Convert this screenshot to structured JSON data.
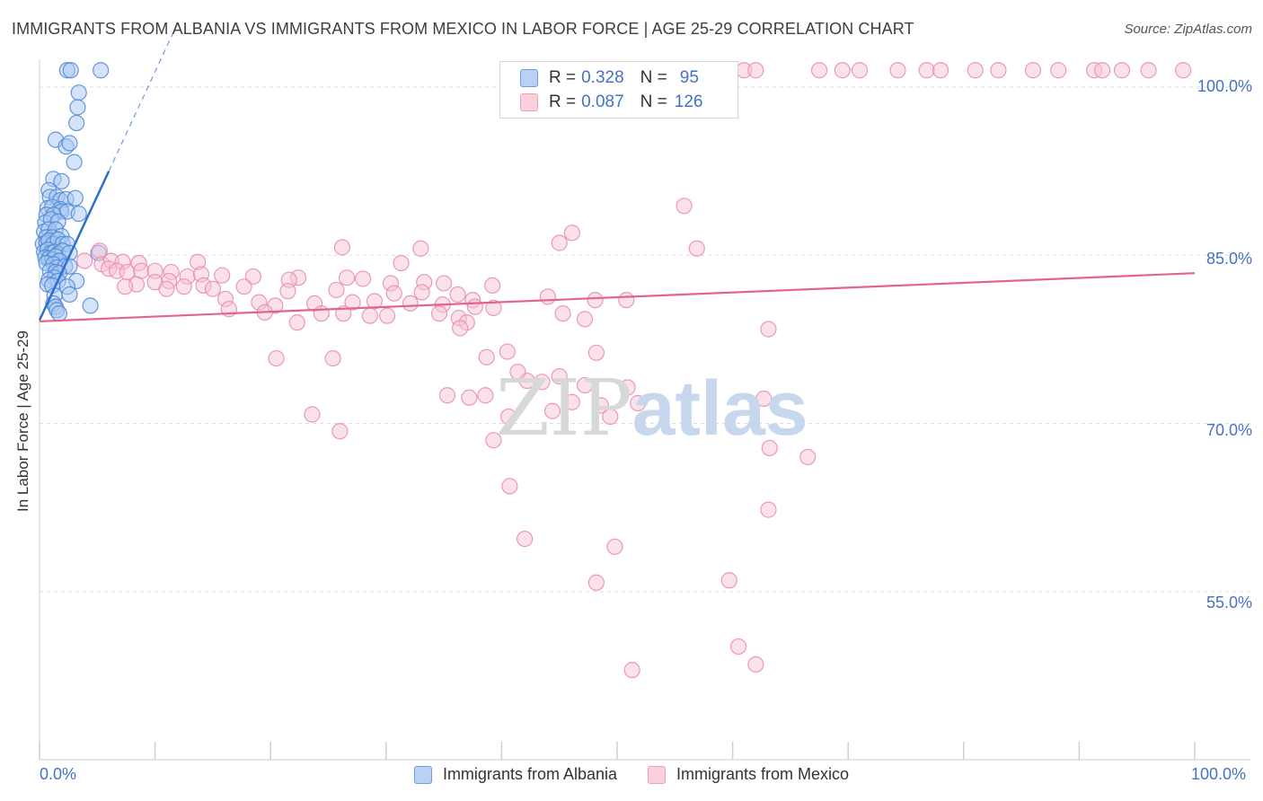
{
  "title": "IMMIGRANTS FROM ALBANIA VS IMMIGRANTS FROM MEXICO IN LABOR FORCE | AGE 25-29 CORRELATION CHART",
  "source": "Source: ZipAtlas.com",
  "watermark": {
    "zip": "ZIP",
    "atlas": "atlas"
  },
  "legend": {
    "albania": {
      "r_label": "R = ",
      "r_value": "0.328",
      "n_label": "N = ",
      "n_value": "95"
    },
    "mexico": {
      "r_label": "R = ",
      "r_value": "0.087",
      "n_label": "N = ",
      "n_value": "126"
    }
  },
  "colors": {
    "albania_fill": "#a9c8f2",
    "albania_stroke": "#4a86d6",
    "albania_line": "#2f6fcc",
    "mexico_fill": "#f8c3d4",
    "mexico_stroke": "#e88aa9",
    "mexico_line": "#e0648e",
    "tick_text": "#4472c4",
    "grid": "#dddddd"
  },
  "chart_data": {
    "type": "scatter",
    "title": "IMMIGRANTS FROM ALBANIA VS IMMIGRANTS FROM MEXICO IN LABOR FORCE | AGE 25-29 CORRELATION CHART",
    "xlabel": "",
    "ylabel": "In Labor Force | Age 25-29",
    "xlim": [
      0,
      100
    ],
    "ylim": [
      40,
      102
    ],
    "x_tick_labels": [
      "0.0%",
      "100.0%"
    ],
    "y_tick_labels": [
      "100.0%",
      "85.0%",
      "70.0%",
      "55.0%"
    ],
    "y_ticks": [
      100,
      85,
      70,
      55
    ],
    "grid": true,
    "legend_position": "top-center",
    "series": [
      {
        "name": "Immigrants from Albania",
        "trend": {
          "x": [
            0,
            6
          ],
          "y": [
            79.2,
            92.5
          ],
          "dashed_extension_to_x": 12
        },
        "points": [
          [
            2.4,
            101.5
          ],
          [
            2.7,
            101.5
          ],
          [
            5.3,
            101.5
          ],
          [
            3.4,
            99.5
          ],
          [
            3.3,
            98.2
          ],
          [
            3.2,
            96.8
          ],
          [
            1.4,
            95.3
          ],
          [
            2.3,
            94.7
          ],
          [
            2.6,
            95
          ],
          [
            3.0,
            93.3
          ],
          [
            1.2,
            91.8
          ],
          [
            1.9,
            91.6
          ],
          [
            0.8,
            90.8
          ],
          [
            0.9,
            90.2
          ],
          [
            1.5,
            90.2
          ],
          [
            1.8,
            89.9
          ],
          [
            2.3,
            90
          ],
          [
            3.1,
            90.1
          ],
          [
            0.7,
            89.2
          ],
          [
            1.1,
            89.3
          ],
          [
            1.8,
            89.1
          ],
          [
            1.9,
            88.9
          ],
          [
            2.4,
            88.9
          ],
          [
            0.6,
            88.6
          ],
          [
            1.2,
            88.6
          ],
          [
            3.4,
            88.7
          ],
          [
            0.5,
            87.9
          ],
          [
            1.0,
            88.2
          ],
          [
            1.6,
            88.0
          ],
          [
            0.4,
            87.1
          ],
          [
            0.8,
            87.3
          ],
          [
            1.4,
            87.3
          ],
          [
            0.6,
            86.6
          ],
          [
            1.1,
            86.6
          ],
          [
            1.9,
            86.7
          ],
          [
            0.3,
            86.0
          ],
          [
            0.6,
            86.1
          ],
          [
            0.8,
            86.3
          ],
          [
            1.2,
            86.0
          ],
          [
            1.6,
            86.4
          ],
          [
            2.0,
            86.0
          ],
          [
            2.4,
            86.0
          ],
          [
            0.4,
            85.3
          ],
          [
            0.7,
            85.5
          ],
          [
            1.0,
            85.2
          ],
          [
            1.3,
            85.3
          ],
          [
            1.6,
            85.1
          ],
          [
            2.0,
            85.4
          ],
          [
            2.6,
            85.2
          ],
          [
            5.1,
            85.2
          ],
          [
            0.5,
            84.8
          ],
          [
            0.8,
            84.7
          ],
          [
            1.1,
            84.6
          ],
          [
            1.4,
            84.9
          ],
          [
            1.7,
            84.5
          ],
          [
            0.6,
            84.3
          ],
          [
            1.2,
            84.2
          ],
          [
            1.5,
            83.9
          ],
          [
            2.2,
            84.0
          ],
          [
            2.6,
            84.0
          ],
          [
            0.9,
            83.6
          ],
          [
            1.4,
            83.5
          ],
          [
            1.7,
            83.4
          ],
          [
            1.3,
            83.0
          ],
          [
            0.8,
            82.8
          ],
          [
            1.6,
            82.7
          ],
          [
            3.2,
            82.7
          ],
          [
            0.7,
            82.4
          ],
          [
            2.4,
            82.2
          ],
          [
            1.1,
            82.3
          ],
          [
            2.6,
            81.5
          ],
          [
            1.3,
            81.4
          ],
          [
            1.2,
            80.7
          ],
          [
            1.4,
            80.4
          ],
          [
            4.4,
            80.5
          ],
          [
            1.5,
            80.1
          ],
          [
            1.7,
            79.8
          ]
        ]
      },
      {
        "name": "Immigrants from Mexico",
        "trend": {
          "x": [
            0,
            100
          ],
          "y": [
            79.1,
            83.4
          ]
        },
        "points": [
          [
            52,
            101.5
          ],
          [
            53.5,
            101.5
          ],
          [
            55.3,
            101.5
          ],
          [
            57,
            101.5
          ],
          [
            58,
            101.5
          ],
          [
            59,
            101.5
          ],
          [
            59.8,
            101.5
          ],
          [
            61,
            101.5
          ],
          [
            62,
            101.5
          ],
          [
            67.5,
            101.5
          ],
          [
            69.5,
            101.5
          ],
          [
            71,
            101.5
          ],
          [
            74.3,
            101.5
          ],
          [
            76.8,
            101.5
          ],
          [
            78,
            101.5
          ],
          [
            81,
            101.5
          ],
          [
            83,
            101.5
          ],
          [
            86,
            101.5
          ],
          [
            88.2,
            101.5
          ],
          [
            91.3,
            101.5
          ],
          [
            92,
            101.5
          ],
          [
            93.7,
            101.5
          ],
          [
            96,
            101.5
          ],
          [
            99,
            101.5
          ],
          [
            55.8,
            89.4
          ],
          [
            46.1,
            87.0
          ],
          [
            45.0,
            86.1
          ],
          [
            56.9,
            85.6
          ],
          [
            26.2,
            85.7
          ],
          [
            33.0,
            85.6
          ],
          [
            5.2,
            85.4
          ],
          [
            3.9,
            84.5
          ],
          [
            5.4,
            84.2
          ],
          [
            6.2,
            84.5
          ],
          [
            7.2,
            84.4
          ],
          [
            8.6,
            84.3
          ],
          [
            13.7,
            84.4
          ],
          [
            31.3,
            84.3
          ],
          [
            6.0,
            83.8
          ],
          [
            6.7,
            83.6
          ],
          [
            7.6,
            83.5
          ],
          [
            8.8,
            83.6
          ],
          [
            10.0,
            83.6
          ],
          [
            11.4,
            83.5
          ],
          [
            12.8,
            83.1
          ],
          [
            14.0,
            83.3
          ],
          [
            15.8,
            83.2
          ],
          [
            18.5,
            83.1
          ],
          [
            22.4,
            83.0
          ],
          [
            26.6,
            83.0
          ],
          [
            28.0,
            82.9
          ],
          [
            21.6,
            82.8
          ],
          [
            11.2,
            82.7
          ],
          [
            10.0,
            82.6
          ],
          [
            8.4,
            82.4
          ],
          [
            14.2,
            82.3
          ],
          [
            30.4,
            82.5
          ],
          [
            33.3,
            82.6
          ],
          [
            35.0,
            82.5
          ],
          [
            39.2,
            82.3
          ],
          [
            17.7,
            82.2
          ],
          [
            15.0,
            82.0
          ],
          [
            12.5,
            82.2
          ],
          [
            11.0,
            82.0
          ],
          [
            7.4,
            82.2
          ],
          [
            21.5,
            81.8
          ],
          [
            25.7,
            81.9
          ],
          [
            33.1,
            81.7
          ],
          [
            30.7,
            81.6
          ],
          [
            36.2,
            81.5
          ],
          [
            37.5,
            81.0
          ],
          [
            44.0,
            81.3
          ],
          [
            48.1,
            81.0
          ],
          [
            50.8,
            81.0
          ],
          [
            16.1,
            81.1
          ],
          [
            19.0,
            80.8
          ],
          [
            20.4,
            80.5
          ],
          [
            23.8,
            80.7
          ],
          [
            27.1,
            80.8
          ],
          [
            29.0,
            80.9
          ],
          [
            32.1,
            80.7
          ],
          [
            34.9,
            80.6
          ],
          [
            37.7,
            80.4
          ],
          [
            39.3,
            80.3
          ],
          [
            16.4,
            80.2
          ],
          [
            19.5,
            79.9
          ],
          [
            24.4,
            79.8
          ],
          [
            26.3,
            79.8
          ],
          [
            28.6,
            79.6
          ],
          [
            30.1,
            79.6
          ],
          [
            34.6,
            79.8
          ],
          [
            36.3,
            79.4
          ],
          [
            45.3,
            79.8
          ],
          [
            47.2,
            79.3
          ],
          [
            37.0,
            79.0
          ],
          [
            22.3,
            79.0
          ],
          [
            36.4,
            78.5
          ],
          [
            63.1,
            78.4
          ],
          [
            48.2,
            76.3
          ],
          [
            40.5,
            76.4
          ],
          [
            20.5,
            75.8
          ],
          [
            25.4,
            75.8
          ],
          [
            38.7,
            75.9
          ],
          [
            45.0,
            74.2
          ],
          [
            42.2,
            73.8
          ],
          [
            43.5,
            73.7
          ],
          [
            50.9,
            73.2
          ],
          [
            41.4,
            74.6
          ],
          [
            47.2,
            73.4
          ],
          [
            35.3,
            72.5
          ],
          [
            38.6,
            72.5
          ],
          [
            46.1,
            71.9
          ],
          [
            48.6,
            71.6
          ],
          [
            51.8,
            71.8
          ],
          [
            37.2,
            72.3
          ],
          [
            44.4,
            71.1
          ],
          [
            49.4,
            70.6
          ],
          [
            23.6,
            70.8
          ],
          [
            40.6,
            70.6
          ],
          [
            62.7,
            72.2
          ],
          [
            26.0,
            69.3
          ],
          [
            39.3,
            68.5
          ],
          [
            66.5,
            67.0
          ],
          [
            63.2,
            67.8
          ],
          [
            40.7,
            64.4
          ],
          [
            63.1,
            62.3
          ],
          [
            42.0,
            59.7
          ],
          [
            49.8,
            59.0
          ],
          [
            48.2,
            55.8
          ],
          [
            59.7,
            56.0
          ],
          [
            51.3,
            48.0
          ],
          [
            62.0,
            48.5
          ],
          [
            60.5,
            50.1
          ]
        ]
      }
    ]
  },
  "bottom_legend": {
    "albania": "Immigrants from Albania",
    "mexico": "Immigrants from Mexico"
  }
}
